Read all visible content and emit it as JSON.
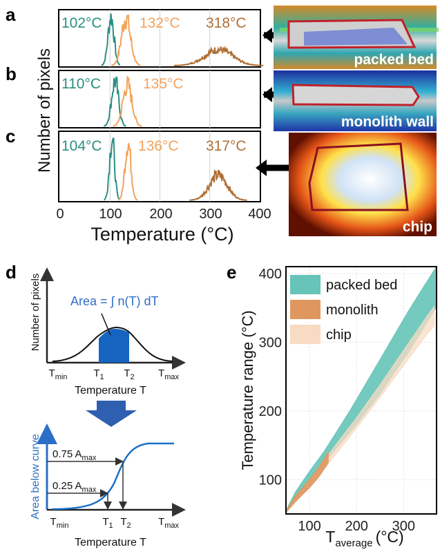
{
  "panel_labels": [
    "a",
    "b",
    "c",
    "d",
    "e"
  ],
  "histograms": {
    "ylabel": "Number of pixels",
    "xlabel": "Temperature (°C)",
    "xticks": [
      "0",
      "100",
      "200",
      "300",
      "400"
    ],
    "xlim": [
      0,
      400
    ],
    "colors": {
      "low": "#2a8f80",
      "mid": "#f2a35a",
      "high": "#b06e35"
    },
    "panels": [
      {
        "label": "a",
        "annotations": [
          "102°C",
          "132°C",
          "318°C"
        ],
        "photo_label": "packed bed"
      },
      {
        "label": "b",
        "annotations": [
          "110°C",
          "135°C"
        ],
        "photo_label": "monolith wall"
      },
      {
        "label": "c",
        "annotations": [
          "104°C",
          "136°C",
          "317°C"
        ],
        "photo_label": "chip"
      }
    ]
  },
  "schematic": {
    "top_ylabel": "Number of pixels",
    "top_xlabel": "Temperature T",
    "area_formula": "Area = ∫ n(T) dT",
    "top_ticks": [
      "T",
      "T",
      "T",
      "T"
    ],
    "top_tick_subs": [
      "min",
      "1",
      "2",
      "max"
    ],
    "bottom_ylabel": "Area below curve",
    "bottom_xlabel": "Temperature T",
    "level_labels": [
      "0.75 A",
      "0.25 A"
    ],
    "level_subs": [
      "max",
      "max"
    ],
    "bottom_ticks": [
      "T",
      "T",
      "T",
      "T"
    ],
    "bottom_tick_subs": [
      "min",
      "1",
      "2",
      "max"
    ]
  },
  "chart_data": {
    "type": "area",
    "xlabel": "T",
    "xlabel_sub": "average",
    "xlabel_unit": "(°C)",
    "ylabel": "Temperature range (°C)",
    "xlim": [
      50,
      370
    ],
    "ylim": [
      50,
      410
    ],
    "xticks": [
      "100",
      "200",
      "300"
    ],
    "yticks": [
      "100",
      "200",
      "300",
      "400"
    ],
    "grid": true,
    "legend_position": "top-left",
    "series": [
      {
        "name": "packed bed",
        "color": "#66c4b8",
        "x": [
          50,
          70,
          100,
          130,
          160,
          190,
          220,
          250,
          280,
          310,
          340,
          370
        ],
        "y_upper": [
          55,
          82,
          112,
          140,
          172,
          205,
          240,
          275,
          310,
          345,
          378,
          410
        ],
        "y_lower": [
          52,
          72,
          98,
          122,
          148,
          172,
          198,
          225,
          255,
          285,
          318,
          352
        ]
      },
      {
        "name": "monolith",
        "color": "#e0975e",
        "x": [
          50,
          70,
          100,
          120,
          140
        ],
        "y_upper": [
          54,
          76,
          100,
          118,
          140
        ],
        "y_lower": [
          52,
          68,
          88,
          104,
          124
        ]
      },
      {
        "name": "chip",
        "color": "#f8dbc3",
        "x": [
          50,
          80,
          110,
          150,
          200,
          250,
          300,
          350,
          365
        ],
        "y_upper": [
          54,
          80,
          108,
          145,
          190,
          238,
          288,
          338,
          352
        ],
        "y_lower": [
          52,
          74,
          100,
          132,
          175,
          220,
          266,
          312,
          324
        ]
      }
    ]
  }
}
